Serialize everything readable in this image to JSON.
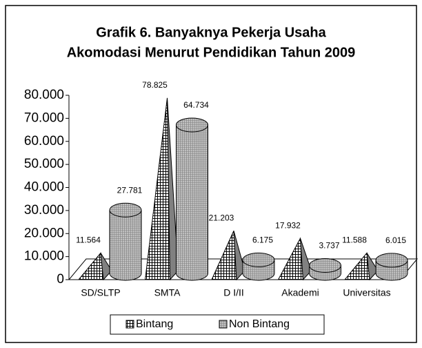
{
  "chart_data": {
    "type": "bar3d",
    "title": [
      "Grafik 6. Banyaknya Pekerja Usaha",
      "Akomodasi Menurut Pendidikan Tahun 2009"
    ],
    "categories": [
      "SD/SLTP",
      "SMTA",
      "D I/II",
      "Akademi",
      "Universitas"
    ],
    "series": [
      {
        "name": "Bintang",
        "color": "#ffffff",
        "values": [
          11564,
          78825,
          21203,
          17932,
          11588
        ],
        "value_labels": [
          "11.564",
          "78.825",
          "21.203",
          "17.932",
          "11.588"
        ]
      },
      {
        "name": "Non Bintang",
        "color": "#c0c0c0",
        "values": [
          27781,
          64734,
          6175,
          3737,
          6015
        ],
        "value_labels": [
          "27.781",
          "64.734",
          "6.175",
          "3.737",
          "6.015"
        ]
      }
    ],
    "ylim": [
      0,
      80000
    ],
    "yticks": [
      0,
      {
        "value": 10000,
        "label": "10.000"
      },
      {
        "value": 20000,
        "label": "20.000"
      },
      {
        "value": 30000,
        "label": "30.000"
      },
      {
        "value": 40000,
        "label": "40.000"
      },
      {
        "value": 50000,
        "label": "50.000"
      },
      {
        "value": 60000,
        "label": "60.000"
      },
      {
        "value": 70000,
        "label": "70.000"
      },
      {
        "value": 80000,
        "label": "80.000"
      }
    ],
    "legend": "bottom"
  }
}
